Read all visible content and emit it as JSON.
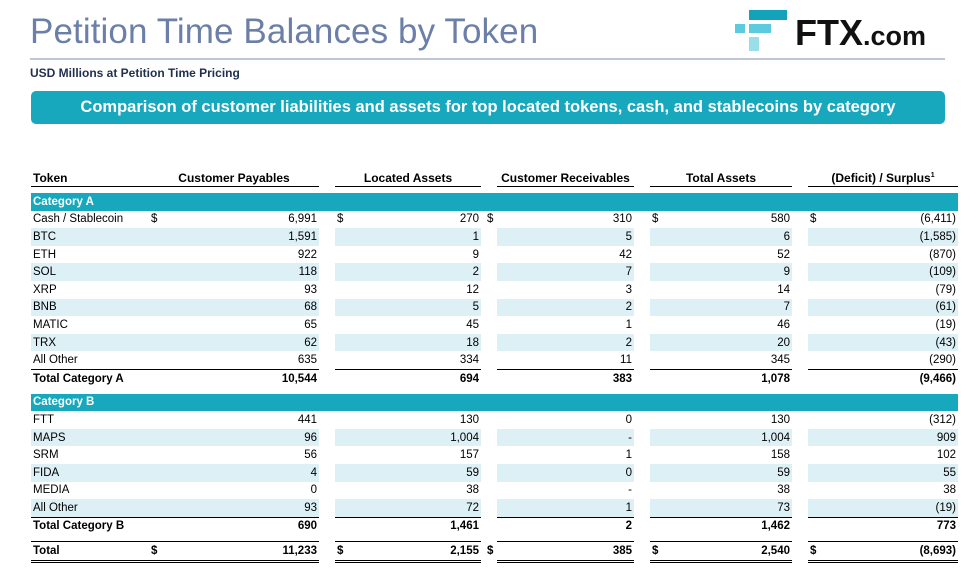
{
  "header": {
    "title": "Petition Time Balances by Token",
    "subtitle": "USD Millions at Petition Time Pricing",
    "banner": "Comparison of customer liabilities and assets for top located tokens, cash, and stablecoins by category",
    "logo_text": "FTX",
    "logo_suffix": ".com",
    "brand_color": "#17a8bd"
  },
  "table": {
    "columns": {
      "token": "Token",
      "payables": "Customer Payables",
      "located": "Located Assets",
      "receivables": "Customer Receivables",
      "total_assets": "Total Assets",
      "surplus": "(Deficit) / Surplus",
      "surplus_note": "1"
    },
    "currency": "$",
    "category_a": {
      "label": "Category A",
      "rows": [
        {
          "token": "Cash / Stablecoin",
          "payables": "6,991",
          "located": "270",
          "receivables": "310",
          "total_assets": "580",
          "surplus": "(6,411)"
        },
        {
          "token": "BTC",
          "payables": "1,591",
          "located": "1",
          "receivables": "5",
          "total_assets": "6",
          "surplus": "(1,585)"
        },
        {
          "token": "ETH",
          "payables": "922",
          "located": "9",
          "receivables": "42",
          "total_assets": "52",
          "surplus": "(870)"
        },
        {
          "token": "SOL",
          "payables": "118",
          "located": "2",
          "receivables": "7",
          "total_assets": "9",
          "surplus": "(109)"
        },
        {
          "token": "XRP",
          "payables": "93",
          "located": "12",
          "receivables": "3",
          "total_assets": "14",
          "surplus": "(79)"
        },
        {
          "token": "BNB",
          "payables": "68",
          "located": "5",
          "receivables": "2",
          "total_assets": "7",
          "surplus": "(61)"
        },
        {
          "token": "MATIC",
          "payables": "65",
          "located": "45",
          "receivables": "1",
          "total_assets": "46",
          "surplus": "(19)"
        },
        {
          "token": "TRX",
          "payables": "62",
          "located": "18",
          "receivables": "2",
          "total_assets": "20",
          "surplus": "(43)"
        },
        {
          "token": "All Other",
          "payables": "635",
          "located": "334",
          "receivables": "11",
          "total_assets": "345",
          "surplus": "(290)"
        }
      ],
      "total": {
        "token": "Total Category A",
        "payables": "10,544",
        "located": "694",
        "receivables": "383",
        "total_assets": "1,078",
        "surplus": "(9,466)"
      }
    },
    "category_b": {
      "label": "Category B",
      "rows": [
        {
          "token": "FTT",
          "payables": "441",
          "located": "130",
          "receivables": "0",
          "total_assets": "130",
          "surplus": "(312)"
        },
        {
          "token": "MAPS",
          "payables": "96",
          "located": "1,004",
          "receivables": "-",
          "total_assets": "1,004",
          "surplus": "909"
        },
        {
          "token": "SRM",
          "payables": "56",
          "located": "157",
          "receivables": "1",
          "total_assets": "158",
          "surplus": "102"
        },
        {
          "token": "FIDA",
          "payables": "4",
          "located": "59",
          "receivables": "0",
          "total_assets": "59",
          "surplus": "55"
        },
        {
          "token": "MEDIA",
          "payables": "0",
          "located": "38",
          "receivables": "-",
          "total_assets": "38",
          "surplus": "38"
        },
        {
          "token": "All Other",
          "payables": "93",
          "located": "72",
          "receivables": "1",
          "total_assets": "73",
          "surplus": "(19)"
        }
      ],
      "total": {
        "token": "Total Category B",
        "payables": "690",
        "located": "1,461",
        "receivables": "2",
        "total_assets": "1,462",
        "surplus": "773"
      }
    },
    "grand_total": {
      "token": "Total",
      "payables": "11,233",
      "located": "2,155",
      "receivables": "385",
      "total_assets": "2,540",
      "surplus": "(8,693)"
    }
  }
}
